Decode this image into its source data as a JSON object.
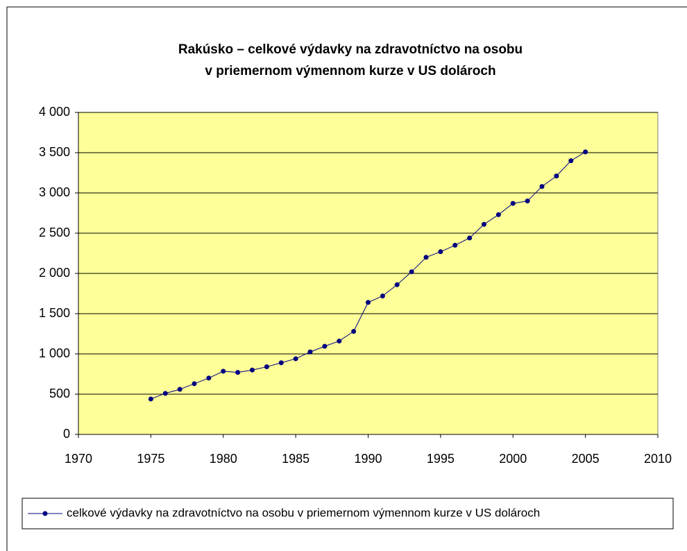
{
  "chart_data": {
    "type": "line",
    "title": [
      "Rakúsko – celkové výdavky na zdravotníctvo na osobu",
      "v priemernom výmennom kurze v US dolároch"
    ],
    "x": [
      1975,
      1976,
      1977,
      1978,
      1979,
      1980,
      1981,
      1982,
      1983,
      1984,
      1985,
      1986,
      1987,
      1988,
      1989,
      1990,
      1991,
      1992,
      1993,
      1994,
      1995,
      1996,
      1997,
      1998,
      1999,
      2000,
      2001,
      2002,
      2003,
      2004,
      2005
    ],
    "series": [
      {
        "name": "celkové výdavky na zdravotníctvo na osobu v priemernom výmennom kurze v US dolároch",
        "color": "#000080",
        "values": [
          440,
          510,
          560,
          630,
          700,
          785,
          770,
          800,
          840,
          890,
          940,
          1025,
          1095,
          1160,
          1280,
          1640,
          1720,
          1860,
          2020,
          2200,
          2270,
          2350,
          2440,
          2610,
          2730,
          2870,
          2900,
          3080,
          3210,
          3400,
          3510
        ]
      }
    ],
    "xlim": [
      1970,
      2010
    ],
    "xticks": [
      1970,
      1975,
      1980,
      1985,
      1990,
      1995,
      2000,
      2005,
      2010
    ],
    "ylim": [
      0,
      4000
    ],
    "yticks": [
      0,
      500,
      {
        "value": 1000,
        "label": "1 000"
      },
      {
        "value": 1500,
        "label": "1 500"
      },
      {
        "value": 2000,
        "label": "2 000"
      },
      {
        "value": 2500,
        "label": "2 500"
      },
      {
        "value": 3000,
        "label": "3 000"
      },
      {
        "value": 3500,
        "label": "3 500"
      },
      {
        "value": 4000,
        "label": "4 000"
      }
    ],
    "grid": true,
    "plot_background": "#ffff99",
    "legend": "bottom"
  }
}
